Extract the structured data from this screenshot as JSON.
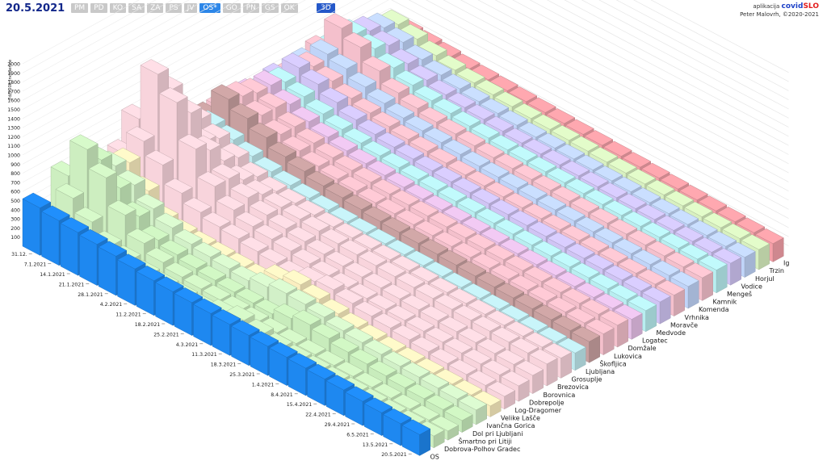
{
  "header": {
    "date": "20.5.2021",
    "regions": [
      "PM",
      "PD",
      "KO",
      "SA",
      "ZA",
      "PS",
      "JV",
      "OS*",
      "GO",
      "PN",
      "GS",
      "OK"
    ],
    "active_region": "OS*",
    "view_toggle": "3D"
  },
  "credit": {
    "app_label": "aplikacija",
    "brand_main": "covid",
    "brand_accent": "SLO",
    "author": "Peter Malovrh, ©2020-2021"
  },
  "chart_data": {
    "type": "bar",
    "ylabel": "7d/100k incidence",
    "yticks": [
      100,
      200,
      300,
      400,
      500,
      600,
      700,
      800,
      900,
      1000,
      1100,
      1200,
      1300,
      1400,
      1500,
      1600,
      1700,
      1800,
      1900,
      2000
    ],
    "ylim": [
      0,
      2000
    ],
    "x_dates": [
      "31.12.",
      "7.1.2021",
      "14.1.2021",
      "21.1.2021",
      "28.1.2021",
      "4.2.2021",
      "11.2.2021",
      "18.2.2021",
      "25.2.2021",
      "4.3.2021",
      "11.3.2021",
      "18.3.2021",
      "25.3.2021",
      "1.4.2021",
      "8.4.2021",
      "15.4.2021",
      "22.4.2021",
      "29.4.2021",
      "6.5.2021",
      "13.5.2021",
      "20.5.2021"
    ],
    "series": [
      {
        "name": "OS",
        "color": "#1e88f0",
        "values": [
          520,
          490,
          470,
          450,
          430,
          400,
          380,
          370,
          360,
          350,
          340,
          330,
          320,
          310,
          300,
          290,
          280,
          265,
          250,
          240,
          230
        ]
      },
      {
        "name": "Dobrova-Polhov Gradec",
        "color": "#cdeec0",
        "values": [
          300,
          650,
          500,
          350,
          300,
          250,
          230,
          220,
          210,
          260,
          300,
          260,
          220,
          200,
          190,
          180,
          170,
          160,
          150,
          140,
          130
        ]
      },
      {
        "name": "Šmartno pri Litiji",
        "color": "#cdeec0",
        "values": [
          700,
          1100,
          900,
          600,
          400,
          300,
          250,
          230,
          220,
          210,
          200,
          190,
          180,
          170,
          160,
          150,
          140,
          130,
          120,
          110,
          100
        ]
      },
      {
        "name": "Dol pri Ljubljani",
        "color": "#c8ecbc",
        "values": [
          500,
          900,
          700,
          500,
          350,
          300,
          260,
          240,
          220,
          210,
          200,
          260,
          300,
          260,
          220,
          200,
          180,
          160,
          150,
          140,
          130
        ]
      },
      {
        "name": "Ivančna Gorica",
        "color": "#d2f0c8",
        "values": [
          600,
          750,
          650,
          500,
          400,
          330,
          300,
          280,
          260,
          300,
          340,
          330,
          300,
          260,
          240,
          220,
          200,
          190,
          180,
          170,
          160
        ]
      },
      {
        "name": "Velike Lašče",
        "color": "#fbeec0",
        "values": [
          400,
          700,
          500,
          300,
          250,
          230,
          220,
          210,
          200,
          300,
          350,
          300,
          250,
          210,
          190,
          170,
          160,
          150,
          140,
          130,
          120
        ]
      },
      {
        "name": "Log-Dragomer",
        "color": "#f8d4dc",
        "values": [
          600,
          850,
          700,
          500,
          400,
          350,
          330,
          300,
          280,
          260,
          300,
          320,
          280,
          250,
          230,
          210,
          190,
          170,
          160,
          150,
          140
        ]
      },
      {
        "name": "Dobrepolje",
        "color": "#f8d4dc",
        "values": [
          900,
          1500,
          1300,
          900,
          600,
          450,
          380,
          350,
          330,
          300,
          280,
          260,
          250,
          240,
          230,
          220,
          210,
          200,
          190,
          180,
          170
        ]
      },
      {
        "name": "Borovnica",
        "color": "#f8d4dc",
        "values": [
          800,
          1250,
          1100,
          800,
          600,
          500,
          420,
          380,
          350,
          320,
          300,
          290,
          280,
          270,
          260,
          250,
          240,
          230,
          220,
          210,
          200
        ]
      },
      {
        "name": "Brezovica",
        "color": "#f8d4dc",
        "values": [
          600,
          800,
          700,
          600,
          500,
          450,
          420,
          400,
          380,
          350,
          340,
          330,
          320,
          310,
          300,
          290,
          280,
          270,
          260,
          250,
          240
        ]
      },
      {
        "name": "Grosuplje",
        "color": "#f8d4dc",
        "values": [
          500,
          750,
          650,
          550,
          450,
          400,
          380,
          360,
          340,
          330,
          320,
          310,
          300,
          290,
          280,
          270,
          260,
          250,
          240,
          230,
          220
        ]
      },
      {
        "name": "Ljubljana",
        "color": "#bfe9ee",
        "values": [
          400,
          600,
          550,
          480,
          420,
          380,
          350,
          330,
          310,
          300,
          290,
          280,
          270,
          260,
          250,
          240,
          230,
          220,
          210,
          200,
          190
        ]
      },
      {
        "name": "Škofljica",
        "color": "#c8a0a0",
        "values": [
          500,
          800,
          700,
          600,
          500,
          450,
          400,
          380,
          360,
          340,
          330,
          320,
          310,
          300,
          290,
          280,
          270,
          260,
          250,
          240,
          230
        ]
      },
      {
        "name": "Lukovica",
        "color": "#f4c0cc",
        "values": [
          500,
          750,
          650,
          550,
          480,
          420,
          390,
          370,
          350,
          340,
          330,
          320,
          310,
          300,
          290,
          280,
          270,
          260,
          250,
          240,
          230
        ]
      },
      {
        "name": "Domžale",
        "color": "#f4c0cc",
        "values": [
          450,
          700,
          650,
          550,
          480,
          430,
          400,
          380,
          360,
          350,
          340,
          330,
          320,
          310,
          300,
          290,
          280,
          270,
          260,
          250,
          240
        ]
      },
      {
        "name": "Logatec",
        "color": "#e6c0e8",
        "values": [
          500,
          700,
          600,
          520,
          460,
          420,
          390,
          370,
          350,
          330,
          320,
          310,
          300,
          290,
          280,
          270,
          260,
          250,
          240,
          230,
          220
        ]
      },
      {
        "name": "Medvode",
        "color": "#b8eef0",
        "values": [
          450,
          650,
          600,
          520,
          460,
          420,
          390,
          370,
          350,
          340,
          330,
          320,
          310,
          300,
          290,
          280,
          270,
          260,
          250,
          240,
          230
        ]
      },
      {
        "name": "Moravče",
        "color": "#d0c4f4",
        "values": [
          500,
          720,
          650,
          560,
          480,
          430,
          400,
          380,
          360,
          350,
          340,
          330,
          320,
          310,
          300,
          290,
          280,
          270,
          260,
          250,
          240
        ]
      },
      {
        "name": "Vrhnika",
        "color": "#f4c0cc",
        "values": [
          450,
          650,
          600,
          520,
          470,
          430,
          400,
          380,
          360,
          340,
          330,
          320,
          310,
          300,
          290,
          280,
          270,
          260,
          250,
          240,
          230
        ]
      },
      {
        "name": "Komenda",
        "color": "#c0d4f8",
        "values": [
          500,
          700,
          650,
          560,
          490,
          440,
          410,
          390,
          370,
          350,
          340,
          330,
          320,
          310,
          300,
          290,
          280,
          270,
          260,
          250,
          240
        ]
      },
      {
        "name": "Kamnik",
        "color": "#f4c0cc",
        "values": [
          550,
          900,
          800,
          650,
          520,
          460,
          420,
          400,
          380,
          360,
          350,
          340,
          330,
          320,
          310,
          300,
          290,
          280,
          270,
          260,
          250
        ]
      },
      {
        "name": "Mengeš",
        "color": "#b8eef0",
        "values": [
          500,
          750,
          700,
          600,
          520,
          460,
          430,
          400,
          380,
          360,
          350,
          340,
          330,
          320,
          310,
          300,
          290,
          280,
          270,
          260,
          250
        ]
      },
      {
        "name": "Vodice",
        "color": "#d0c4f4",
        "values": [
          450,
          700,
          650,
          560,
          490,
          440,
          410,
          390,
          370,
          350,
          340,
          330,
          320,
          310,
          300,
          290,
          280,
          270,
          260,
          250,
          240
        ]
      },
      {
        "name": "Horjul",
        "color": "#c0d4f8",
        "values": [
          400,
          650,
          600,
          520,
          460,
          420,
          390,
          370,
          350,
          330,
          320,
          310,
          300,
          290,
          280,
          270,
          260,
          250,
          240,
          230,
          220
        ]
      },
      {
        "name": "Trzin",
        "color": "#d8f0c0",
        "values": [
          400,
          600,
          550,
          480,
          430,
          400,
          380,
          360,
          340,
          330,
          320,
          310,
          300,
          290,
          280,
          270,
          260,
          250,
          240,
          230,
          220
        ]
      },
      {
        "name": "Ig",
        "color": "#f4a0a8",
        "values": [
          300,
          420,
          400,
          380,
          360,
          350,
          340,
          330,
          320,
          310,
          300,
          290,
          280,
          270,
          260,
          250,
          240,
          230,
          220,
          210,
          200
        ]
      }
    ]
  }
}
